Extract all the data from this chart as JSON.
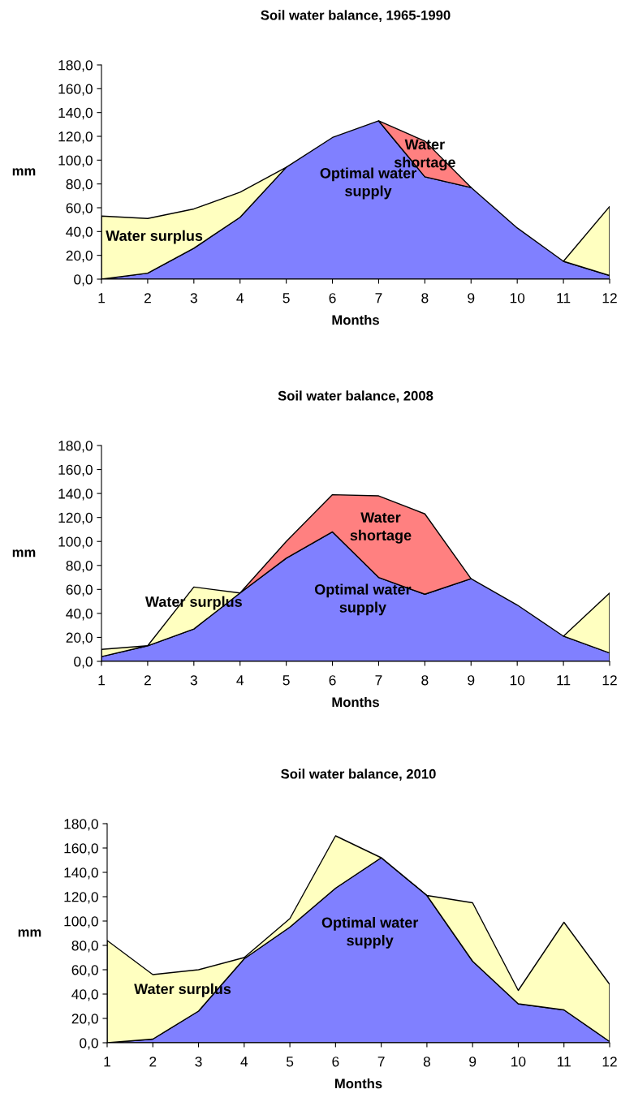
{
  "chart_data": [
    {
      "type": "area",
      "stacked": true,
      "title": "Soil water balance, 1965-1990",
      "xlabel": "Months",
      "ylabel": "mm",
      "x": [
        1,
        2,
        3,
        4,
        5,
        6,
        7,
        8,
        9,
        10,
        11,
        12
      ],
      "xlim": [
        1,
        12
      ],
      "xticks": [
        1,
        2,
        3,
        4,
        5,
        6,
        7,
        8,
        9,
        10,
        11,
        12
      ],
      "ylim": [
        0,
        180
      ],
      "yticks": [
        {
          "value": 0,
          "label": "0,0"
        },
        {
          "value": 20,
          "label": "20,0"
        },
        {
          "value": 40,
          "label": "40,0"
        },
        {
          "value": 60,
          "label": "60,0"
        },
        {
          "value": 80,
          "label": "80,0"
        },
        {
          "value": 100,
          "label": "100,0"
        },
        {
          "value": 120,
          "label": "120,0"
        },
        {
          "value": 140,
          "label": "140,0"
        },
        {
          "value": 160,
          "label": "160,0"
        },
        {
          "value": 180,
          "label": "180,0"
        }
      ],
      "grid": false,
      "legend": false,
      "series": [
        {
          "name": "Optimal water\nsupply",
          "color": "#8080ff",
          "values": [
            0,
            5,
            26,
            52,
            94,
            119,
            133,
            86,
            77,
            43,
            15,
            3
          ]
        },
        {
          "name": "Water surplus",
          "color": "#ffffc0",
          "values": [
            53,
            46,
            33,
            21,
            0,
            null,
            null,
            null,
            null,
            null,
            0,
            58
          ]
        },
        {
          "name": "Water\nshortage",
          "color": "#ff8080",
          "values": [
            null,
            null,
            null,
            null,
            null,
            null,
            0,
            30,
            0,
            null,
            null,
            null
          ]
        }
      ]
    },
    {
      "type": "area",
      "stacked": true,
      "title": "Soil water balance, 2008",
      "xlabel": "Months",
      "ylabel": "mm",
      "x": [
        1,
        2,
        3,
        4,
        5,
        6,
        7,
        8,
        9,
        10,
        11,
        12
      ],
      "xlim": [
        1,
        12
      ],
      "xticks": [
        1,
        2,
        3,
        4,
        5,
        6,
        7,
        8,
        9,
        10,
        11,
        12
      ],
      "ylim": [
        0,
        180
      ],
      "yticks": [
        {
          "value": 0,
          "label": "0,0"
        },
        {
          "value": 20,
          "label": "20,0"
        },
        {
          "value": 40,
          "label": "40,0"
        },
        {
          "value": 60,
          "label": "60,0"
        },
        {
          "value": 80,
          "label": "80,0"
        },
        {
          "value": 100,
          "label": "100,0"
        },
        {
          "value": 120,
          "label": "120,0"
        },
        {
          "value": 140,
          "label": "140,0"
        },
        {
          "value": 160,
          "label": "160,0"
        },
        {
          "value": 180,
          "label": "180,0"
        }
      ],
      "grid": false,
      "legend": false,
      "series": [
        {
          "name": "Optimal water\nsupply",
          "color": "#8080ff",
          "values": [
            4,
            13,
            27,
            57,
            86,
            108,
            70,
            56,
            69,
            47,
            21,
            7
          ]
        },
        {
          "name": "Water surplus",
          "color": "#ffffc0",
          "values": [
            6,
            0,
            35,
            0,
            null,
            null,
            null,
            null,
            null,
            null,
            0,
            50
          ]
        },
        {
          "name": "Water\nshortage",
          "color": "#ff8080",
          "values": [
            null,
            null,
            null,
            0,
            14,
            31,
            68,
            67,
            0,
            null,
            null,
            null
          ]
        }
      ]
    },
    {
      "type": "area",
      "stacked": true,
      "title": "Soil water balance, 2010",
      "xlabel": "Months",
      "ylabel": "mm",
      "x": [
        1,
        2,
        3,
        4,
        5,
        6,
        7,
        8,
        9,
        10,
        11,
        12
      ],
      "xlim": [
        1,
        12
      ],
      "xticks": [
        1,
        2,
        3,
        4,
        5,
        6,
        7,
        8,
        9,
        10,
        11,
        12
      ],
      "ylim": [
        0,
        180
      ],
      "yticks": [
        {
          "value": 0,
          "label": "0,0"
        },
        {
          "value": 20,
          "label": "20,0"
        },
        {
          "value": 40,
          "label": "40,0"
        },
        {
          "value": 60,
          "label": "60,0"
        },
        {
          "value": 80,
          "label": "80,0"
        },
        {
          "value": 100,
          "label": "100,0"
        },
        {
          "value": 120,
          "label": "120,0"
        },
        {
          "value": 140,
          "label": "140,0"
        },
        {
          "value": 160,
          "label": "160,0"
        },
        {
          "value": 180,
          "label": "180,0"
        }
      ],
      "grid": false,
      "legend": false,
      "series": [
        {
          "name": "Optimal water\nsupply",
          "color": "#8080ff",
          "values": [
            0,
            3,
            26,
            69,
            95,
            127,
            152,
            121,
            67,
            32,
            27,
            1
          ]
        },
        {
          "name": "Water surplus",
          "color": "#ffffc0",
          "values": [
            84,
            53,
            34,
            1,
            7,
            43,
            0,
            0,
            48,
            11,
            72,
            47
          ]
        }
      ]
    }
  ]
}
